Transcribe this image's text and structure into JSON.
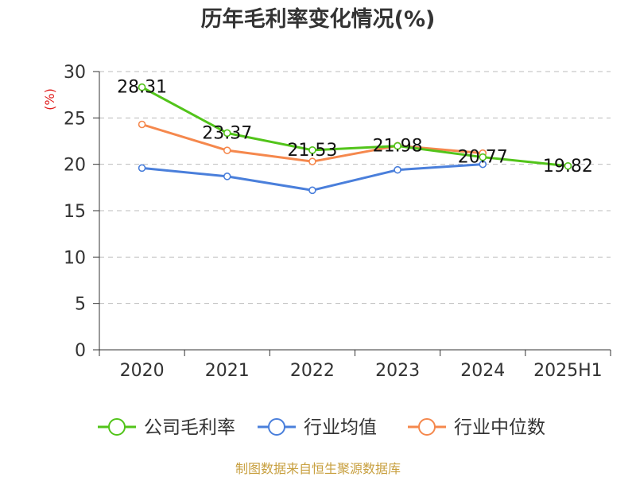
{
  "chart_data": {
    "type": "line",
    "title": "历年毛利率变化情况(%)",
    "ylabel": "(%)",
    "xlabel": "",
    "categories": [
      "2020",
      "2021",
      "2022",
      "2023",
      "2024",
      "2025H1"
    ],
    "ylim": [
      0,
      30
    ],
    "yticks": [
      0,
      5,
      10,
      15,
      20,
      25,
      30
    ],
    "grid": true,
    "legend_position": "bottom",
    "series": [
      {
        "name": "公司毛利率",
        "color": "#52c41a",
        "values": [
          28.31,
          23.37,
          21.53,
          21.98,
          20.77,
          19.82
        ],
        "labels": [
          "28.31",
          "23.37",
          "21.53",
          "21.98",
          "20.77",
          "19.82"
        ]
      },
      {
        "name": "行业均值",
        "color": "#4a7fdb",
        "values": [
          19.6,
          18.7,
          17.2,
          19.4,
          20.0,
          null
        ]
      },
      {
        "name": "行业中位数",
        "color": "#f5884d",
        "values": [
          24.3,
          21.5,
          20.3,
          22.0,
          21.2,
          null
        ]
      }
    ],
    "source": "制图数据来自恒生聚源数据库"
  }
}
